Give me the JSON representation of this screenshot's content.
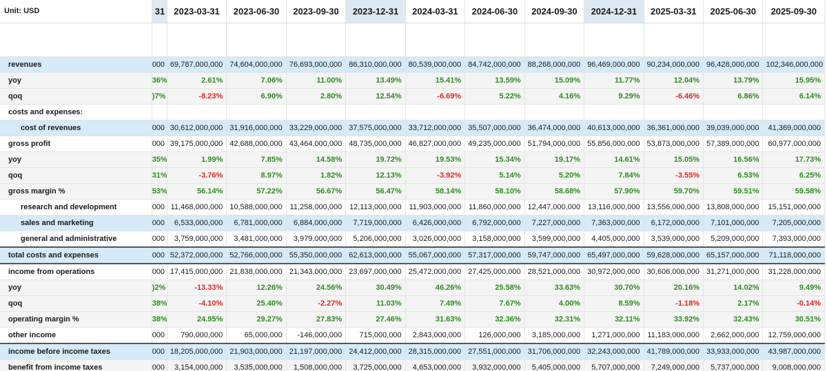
{
  "unit_label": "Unit: USD",
  "columns": [
    {
      "label": "31",
      "fragment": true,
      "highlight": true
    },
    {
      "label": "2023-03-31",
      "highlight": false
    },
    {
      "label": "2023-06-30",
      "highlight": false
    },
    {
      "label": "2023-09-30",
      "highlight": false
    },
    {
      "label": "2023-12-31",
      "highlight": true
    },
    {
      "label": "2024-03-31",
      "highlight": false
    },
    {
      "label": "2024-06-30",
      "highlight": false
    },
    {
      "label": "2024-09-30",
      "highlight": false
    },
    {
      "label": "2024-12-31",
      "highlight": true
    },
    {
      "label": "2025-03-31",
      "highlight": false
    },
    {
      "label": "2025-06-30",
      "highlight": false
    },
    {
      "label": "2025-09-30",
      "highlight": false
    }
  ],
  "rows": [
    {
      "label": "revenues",
      "indent": 0,
      "style": "blue",
      "kind": "plain",
      "values": [
        "000",
        "69,787,000,000",
        "74,604,000,000",
        "76,693,000,000",
        "86,310,000,000",
        "80,539,000,000",
        "84,742,000,000",
        "88,268,000,000",
        "96,469,000,000",
        "90,234,000,000",
        "96,428,000,000",
        "102,346,000,000"
      ]
    },
    {
      "label": "yoy",
      "indent": 0,
      "style": "gray",
      "kind": "pct",
      "values": [
        "36%",
        "2.61%",
        "7.06%",
        "11.00%",
        "13.49%",
        "15.41%",
        "13.59%",
        "15.09%",
        "11.77%",
        "12.04%",
        "13.79%",
        "15.95%"
      ]
    },
    {
      "label": "qoq",
      "indent": 0,
      "style": "gray",
      "kind": "pct",
      "values": [
        ")7%",
        "-8.23%",
        "6.90%",
        "2.80%",
        "12.54%",
        "-6.69%",
        "5.22%",
        "4.16%",
        "9.29%",
        "-6.46%",
        "6.86%",
        "6.14%"
      ]
    },
    {
      "label": "costs and expenses:",
      "indent": 0,
      "style": "white",
      "kind": "plain",
      "values": [
        "",
        "",
        "",
        "",
        "",
        "",
        "",
        "",
        "",
        "",
        "",
        ""
      ]
    },
    {
      "label": "cost of revenues",
      "indent": 1,
      "style": "blue",
      "kind": "plain",
      "values": [
        "000",
        "30,612,000,000",
        "31,916,000,000",
        "33,229,000,000",
        "37,575,000,000",
        "33,712,000,000",
        "35,507,000,000",
        "36,474,000,000",
        "40,613,000,000",
        "36,361,000,000",
        "39,039,000,000",
        "41,369,000,000"
      ]
    },
    {
      "label": "gross profit",
      "indent": 0,
      "style": "white",
      "kind": "plain",
      "values": [
        "000",
        "39,175,000,000",
        "42,688,000,000",
        "43,464,000,000",
        "48,735,000,000",
        "46,827,000,000",
        "49,235,000,000",
        "51,794,000,000",
        "55,856,000,000",
        "53,873,000,000",
        "57,389,000,000",
        "60,977,000,000"
      ]
    },
    {
      "label": "yoy",
      "indent": 0,
      "style": "gray",
      "kind": "pct",
      "values": [
        "35%",
        "1.99%",
        "7.85%",
        "14.58%",
        "19.72%",
        "19.53%",
        "15.34%",
        "19.17%",
        "14.61%",
        "15.05%",
        "16.56%",
        "17.73%"
      ]
    },
    {
      "label": "qoq",
      "indent": 0,
      "style": "gray",
      "kind": "pct",
      "values": [
        "31%",
        "-3.76%",
        "8.97%",
        "1.82%",
        "12.13%",
        "-3.92%",
        "5.14%",
        "5.20%",
        "7.84%",
        "-3.55%",
        "6.53%",
        "6.25%"
      ]
    },
    {
      "label": "gross margin %",
      "indent": 0,
      "style": "gray",
      "kind": "pct",
      "values": [
        "53%",
        "56.14%",
        "57.22%",
        "56.67%",
        "56.47%",
        "58.14%",
        "58.10%",
        "58.68%",
        "57.90%",
        "59.70%",
        "59.51%",
        "59.58%"
      ]
    },
    {
      "label": "research and development",
      "indent": 1,
      "style": "white",
      "kind": "plain",
      "values": [
        "000",
        "11,468,000,000",
        "10,588,000,000",
        "11,258,000,000",
        "12,113,000,000",
        "11,903,000,000",
        "11,860,000,000",
        "12,447,000,000",
        "13,116,000,000",
        "13,556,000,000",
        "13,808,000,000",
        "15,151,000,000"
      ]
    },
    {
      "label": "sales and marketing",
      "indent": 1,
      "style": "blue",
      "kind": "plain",
      "values": [
        "000",
        "6,533,000,000",
        "6,781,000,000",
        "6,884,000,000",
        "7,719,000,000",
        "6,426,000,000",
        "6,792,000,000",
        "7,227,000,000",
        "7,363,000,000",
        "6,172,000,000",
        "7,101,000,000",
        "7,205,000,000"
      ]
    },
    {
      "label": "general and administrative",
      "indent": 1,
      "style": "white",
      "kind": "plain",
      "values": [
        "000",
        "3,759,000,000",
        "3,481,000,000",
        "3,979,000,000",
        "5,206,000,000",
        "3,026,000,000",
        "3,158,000,000",
        "3,599,000,000",
        "4,405,000,000",
        "3,539,000,000",
        "5,209,000,000",
        "7,393,000,000"
      ]
    },
    {
      "label": "total costs and expenses",
      "indent": 0,
      "style": "blue",
      "kind": "plain",
      "thick_top": true,
      "values": [
        "000",
        "52,372,000,000",
        "52,766,000,000",
        "55,350,000,000",
        "62,613,000,000",
        "55,067,000,000",
        "57,317,000,000",
        "59,747,000,000",
        "65,497,000,000",
        "59,628,000,000",
        "65,157,000,000",
        "71,118,000,000"
      ]
    },
    {
      "label": "income from operations",
      "indent": 0,
      "style": "white",
      "kind": "plain",
      "thick_top": true,
      "values": [
        "000",
        "17,415,000,000",
        "21,838,000,000",
        "21,343,000,000",
        "23,697,000,000",
        "25,472,000,000",
        "27,425,000,000",
        "28,521,000,000",
        "30,972,000,000",
        "30,606,000,000",
        "31,271,000,000",
        "31,228,000,000"
      ]
    },
    {
      "label": "yoy",
      "indent": 0,
      "style": "gray",
      "kind": "pct",
      "values": [
        ")2%",
        "-13.33%",
        "12.26%",
        "24.56%",
        "30.49%",
        "46.26%",
        "25.58%",
        "33.63%",
        "30.70%",
        "20.16%",
        "14.02%",
        "9.49%"
      ]
    },
    {
      "label": "qoq",
      "indent": 0,
      "style": "gray",
      "kind": "pct",
      "values": [
        "38%",
        "-4.10%",
        "25.40%",
        "-2.27%",
        "11.03%",
        "7.49%",
        "7.67%",
        "4.00%",
        "8.59%",
        "-1.18%",
        "2.17%",
        "-0.14%"
      ]
    },
    {
      "label": "operating margin %",
      "indent": 0,
      "style": "gray",
      "kind": "pct",
      "values": [
        "38%",
        "24.95%",
        "29.27%",
        "27.83%",
        "27.46%",
        "31.63%",
        "32.36%",
        "32.31%",
        "32.11%",
        "33.92%",
        "32.43%",
        "30.51%"
      ]
    },
    {
      "label": "other income",
      "indent": 0,
      "style": "white",
      "kind": "plain",
      "values": [
        "000",
        "790,000,000",
        "65,000,000",
        "-146,000,000",
        "715,000,000",
        "2,843,000,000",
        "126,000,000",
        "3,185,000,000",
        "1,271,000,000",
        "11,183,000,000",
        "2,662,000,000",
        "12,759,000,000"
      ]
    },
    {
      "label": "income before income taxes",
      "indent": 0,
      "style": "blue",
      "kind": "plain",
      "thick_top": true,
      "values": [
        "000",
        "18,205,000,000",
        "21,903,000,000",
        "21,197,000,000",
        "24,412,000,000",
        "28,315,000,000",
        "27,551,000,000",
        "31,706,000,000",
        "32,243,000,000",
        "41,789,000,000",
        "33,933,000,000",
        "43,987,000,000"
      ]
    },
    {
      "label": "benefit from income taxes",
      "indent": 0,
      "style": "gray",
      "kind": "plain",
      "values": [
        "000",
        "3,154,000,000",
        "3,535,000,000",
        "1,508,000,000",
        "3,725,000,000",
        "4,653,000,000",
        "3,932,000,000",
        "5,405,000,000",
        "5,707,000,000",
        "7,249,000,000",
        "5,737,000,000",
        "9,008,000,000"
      ]
    }
  ]
}
